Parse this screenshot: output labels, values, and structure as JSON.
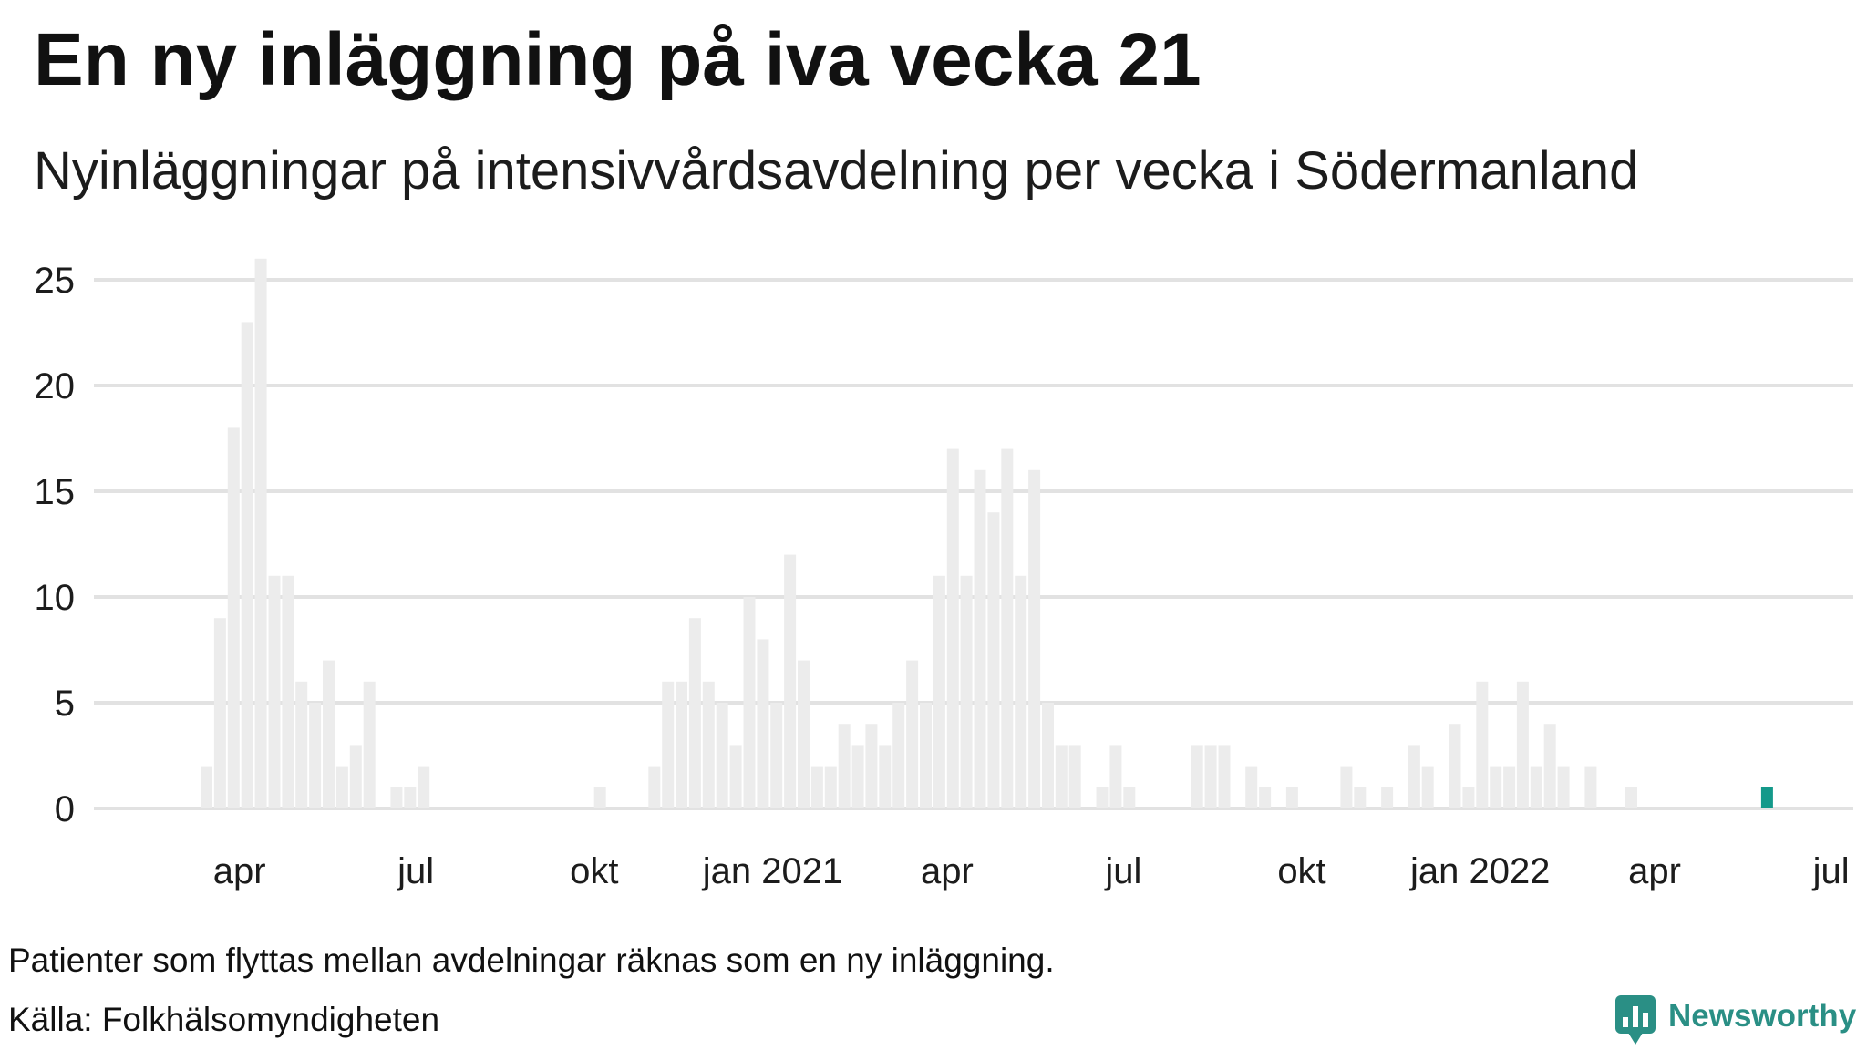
{
  "note": "Patienter som flyttas mellan avdelningar räknas som en ny inläggning.",
  "source": "Källa: Folkhälsomyndigheten",
  "brand": {
    "name": "Newsworthy",
    "color": "#2a8f85"
  },
  "chart_data": {
    "type": "bar",
    "title": "En ny inläggning på iva vecka 21",
    "subtitle": "Nyinläggningar på intensivvårdsavdelning per vecka i Södermanland",
    "xlabel": "",
    "ylabel": "",
    "ylim": [
      0,
      25
    ],
    "yticks": [
      0,
      5,
      10,
      15,
      20,
      25
    ],
    "grid": true,
    "first_week": {
      "year": 2020,
      "week": 11
    },
    "values": [
      2,
      9,
      18,
      23,
      26,
      11,
      11,
      6,
      5,
      7,
      2,
      3,
      6,
      0,
      1,
      1,
      2,
      0,
      0,
      0,
      0,
      0,
      0,
      0,
      0,
      0,
      0,
      0,
      0,
      1,
      0,
      0,
      0,
      2,
      6,
      6,
      9,
      6,
      5,
      3,
      10,
      8,
      5,
      12,
      7,
      2,
      2,
      4,
      3,
      4,
      3,
      5,
      7,
      5,
      11,
      17,
      11,
      16,
      14,
      17,
      11,
      16,
      5,
      3,
      3,
      0,
      1,
      3,
      1,
      0,
      0,
      0,
      0,
      3,
      3,
      3,
      0,
      2,
      1,
      0,
      1,
      0,
      0,
      0,
      2,
      1,
      0,
      1,
      0,
      3,
      2,
      0,
      4,
      1,
      6,
      2,
      2,
      6,
      2,
      4,
      2,
      0,
      2,
      0,
      0,
      1,
      0,
      0,
      0,
      0,
      0,
      0,
      0,
      0,
      0,
      1
    ],
    "highlight_last": true,
    "bar_color": "#ececec",
    "highlight_color": "#14998a",
    "grid_color": "#e2e2e2",
    "xticks": [
      {
        "label": "apr",
        "year": 2020,
        "month": 4
      },
      {
        "label": "jul",
        "year": 2020,
        "month": 7
      },
      {
        "label": "okt",
        "year": 2020,
        "month": 10
      },
      {
        "label": "jan 2021",
        "year": 2021,
        "month": 1
      },
      {
        "label": "apr",
        "year": 2021,
        "month": 4
      },
      {
        "label": "jul",
        "year": 2021,
        "month": 7
      },
      {
        "label": "okt",
        "year": 2021,
        "month": 10
      },
      {
        "label": "jan 2022",
        "year": 2022,
        "month": 1
      },
      {
        "label": "apr",
        "year": 2022,
        "month": 4
      },
      {
        "label": "jul",
        "year": 2022,
        "month": 7
      }
    ]
  }
}
